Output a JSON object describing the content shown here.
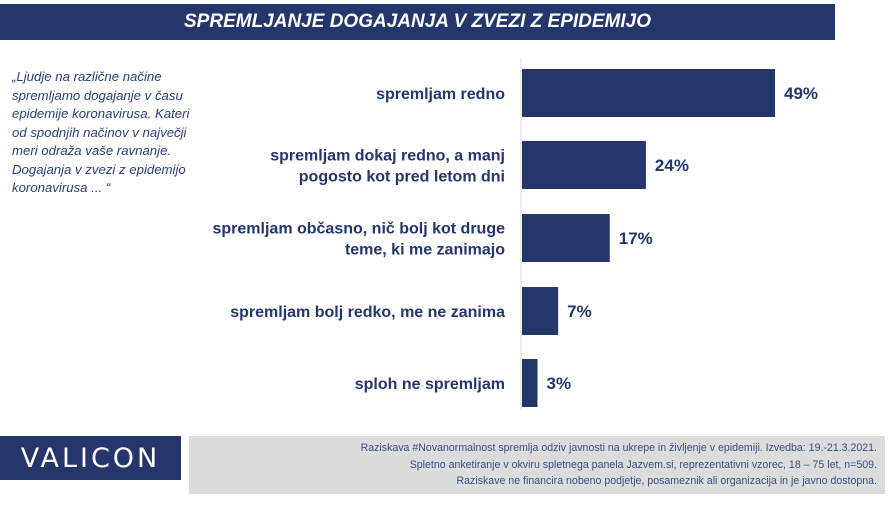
{
  "chart_data": {
    "type": "bar",
    "orientation": "horizontal",
    "title": "SPREMLJANJE DOGAJANJA V ZVEZI Z EPIDEMIJO",
    "categories": [
      [
        "spremljam redno"
      ],
      [
        "spremljam dokaj redno, a manj",
        "pogosto kot pred letom dni"
      ],
      [
        "spremljam občasno, nič bolj kot druge",
        "teme, ki me zanimajo"
      ],
      [
        "spremljam bolj redko, me ne zanima"
      ],
      [
        "sploh ne spremljam"
      ]
    ],
    "values": [
      49,
      24,
      17,
      7,
      3
    ],
    "value_labels": [
      "49%",
      "24%",
      "17%",
      "7%",
      "3%"
    ],
    "unit": "%",
    "xlim": [
      0,
      100
    ],
    "xlabel": "",
    "ylabel": "",
    "grid": false,
    "bar_color": "#24366b"
  },
  "question_text": "„Ljudje na različne načine spremljamo dogajanje v času epidemije koronavirusa.  Kateri od spodnjih načinov v največji meri odraža vaše ravnanje. Dogajanja v zvezi z epidemijo koronavirusa ... “",
  "logo_text": "VALICON",
  "footer_lines": [
    "Raziskava #Novanormalnost spremlja odziv javnosti na ukrepe in življenje v epidemiji. Izvedba: 19.-21.3.2021.",
    "Spletno anketiranje v okviru spletnega panela Jazvem.si, reprezentativni vzorec, 18 – 75 let, n=509.",
    "Raziskave ne financira nobeno podjetje, posameznik ali organizacija in je javno dostopna."
  ]
}
